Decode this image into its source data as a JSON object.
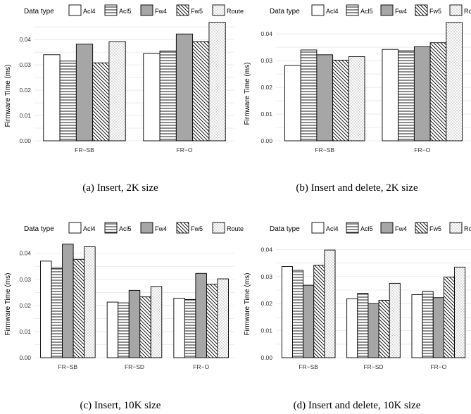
{
  "chart_data": [
    {
      "type": "bar",
      "caption": "(a) Insert, 2K size",
      "legend_title": "Data type",
      "ylabel": "Firmware Time (ms)",
      "categories": [
        "FR−SB",
        "FR−O"
      ],
      "yticks": [
        "0.00",
        "0.01",
        "0.02",
        "0.03",
        "0.04"
      ],
      "ylim": [
        0,
        0.047
      ],
      "series": [
        {
          "name": "Acl4",
          "values": [
            0.034,
            0.0345
          ]
        },
        {
          "name": "Acl5",
          "values": [
            0.0315,
            0.0355
          ]
        },
        {
          "name": "Fw4",
          "values": [
            0.0382,
            0.0422
          ]
        },
        {
          "name": "Fw5",
          "values": [
            0.0308,
            0.0392
          ]
        },
        {
          "name": "Route",
          "values": [
            0.0392,
            0.0468
          ]
        }
      ],
      "legend": "top",
      "grid": true
    },
    {
      "type": "bar",
      "caption": "(b) Insert and delete, 2K size",
      "legend_title": "Data type",
      "ylabel": "Firmware Time (ms)",
      "categories": [
        "FR−SB",
        "FR−O"
      ],
      "yticks": [
        "0.00",
        "0.01",
        "0.02",
        "0.03",
        "0.04"
      ],
      "ylim": [
        0,
        0.044
      ],
      "series": [
        {
          "name": "Acl4",
          "values": [
            0.0282,
            0.0342
          ]
        },
        {
          "name": "Acl5",
          "values": [
            0.034,
            0.0337
          ]
        },
        {
          "name": "Fw4",
          "values": [
            0.0322,
            0.0352
          ]
        },
        {
          "name": "Fw5",
          "values": [
            0.0302,
            0.0367
          ]
        },
        {
          "name": "Route",
          "values": [
            0.0315,
            0.0443
          ]
        }
      ],
      "legend": "top",
      "grid": true
    },
    {
      "type": "bar",
      "caption": "(c) Insert, 10K size",
      "legend_title": "Data type",
      "ylabel": "Firmware Time (ms)",
      "categories": [
        "FR−SB",
        "FR−SD",
        "FR−O"
      ],
      "yticks": [
        "0.00",
        "0.01",
        "0.02",
        "0.03",
        "0.04"
      ],
      "ylim": [
        0,
        0.0437
      ],
      "series": [
        {
          "name": "Acl4",
          "values": [
            0.037,
            0.0213,
            0.0228
          ]
        },
        {
          "name": "Acl5",
          "values": [
            0.0343,
            0.021,
            0.0223
          ]
        },
        {
          "name": "Fw4",
          "values": [
            0.0435,
            0.0258,
            0.0323
          ]
        },
        {
          "name": "Fw5",
          "values": [
            0.0377,
            0.0233,
            0.0282
          ]
        },
        {
          "name": "Route",
          "values": [
            0.0425,
            0.0273,
            0.0302
          ]
        }
      ],
      "legend": "top",
      "grid": true
    },
    {
      "type": "bar",
      "caption": "(d) Insert and delete, 10K size",
      "legend_title": "Data type",
      "ylabel": "Firmware Time (ms)",
      "categories": [
        "FR−SB",
        "FR−SD",
        "FR−O"
      ],
      "yticks": [
        "0.00",
        "0.01",
        "0.02",
        "0.03",
        "0.04"
      ],
      "ylim": [
        0,
        0.0414
      ],
      "series": [
        {
          "name": "Acl4",
          "values": [
            0.0337,
            0.0218,
            0.0233
          ]
        },
        {
          "name": "Acl5",
          "values": [
            0.0323,
            0.0238,
            0.0245
          ]
        },
        {
          "name": "Fw4",
          "values": [
            0.0268,
            0.02,
            0.0222
          ]
        },
        {
          "name": "Fw5",
          "values": [
            0.0342,
            0.0212,
            0.0298
          ]
        },
        {
          "name": "Route",
          "values": [
            0.0398,
            0.0275,
            0.0335
          ]
        }
      ],
      "legend": "top",
      "grid": true
    }
  ],
  "series_styles": {
    "colors": {
      "bar_stroke": "#000000",
      "fw4_fill": "#a6a6a6",
      "plain_fill": "#ffffff",
      "grid": "#e6e6e6"
    },
    "patterns": [
      "none",
      "horizontal-lines",
      "solid-grey",
      "diagonal-lines",
      "dots"
    ]
  }
}
